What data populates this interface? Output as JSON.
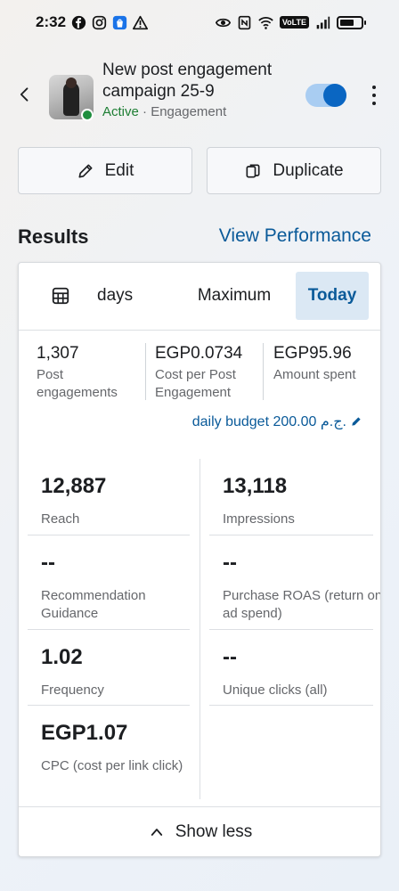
{
  "status_bar": {
    "time": "2:32",
    "volte": "VoLTE"
  },
  "header": {
    "title": "New post engagement campaign 25-9",
    "status": "Active",
    "separator": "·",
    "objective": "Engagement",
    "toggle_on": true
  },
  "actions": {
    "edit_label": "Edit",
    "duplicate_label": "Duplicate"
  },
  "results": {
    "title": "Results",
    "view_performance": "View Performance"
  },
  "tabs": {
    "days": "days",
    "maximum": "Maximum",
    "today": "Today",
    "selected": "Today"
  },
  "summary": [
    {
      "value": "1,307",
      "label": "Post engagements"
    },
    {
      "value": "EGP0.0734",
      "label": "Cost per Post Engagement"
    },
    {
      "value": "EGP95.96",
      "label": "Amount spent"
    }
  ],
  "budget": {
    "text": "daily budget 200.00 ج.م."
  },
  "metrics": {
    "reach": {
      "value": "12,887",
      "label": "Reach"
    },
    "impressions": {
      "value": "13,118",
      "label": "Impressions"
    },
    "recommendation": {
      "value": "--",
      "label": "Recommendation Guidance"
    },
    "purchase_roas": {
      "value": "--",
      "label": "Purchase ROAS (return on ad spend)"
    },
    "frequency": {
      "value": "1.02",
      "label": "Frequency"
    },
    "unique_clicks": {
      "value": "--",
      "label": "Unique clicks (all)"
    },
    "cpc": {
      "value": "EGP1.07",
      "label": "CPC (cost per link click)"
    }
  },
  "show_less": "Show less",
  "colors": {
    "accent_blue": "#0a5a99",
    "toggle_blue": "#0a66c2",
    "active_green": "#1e7e34"
  }
}
